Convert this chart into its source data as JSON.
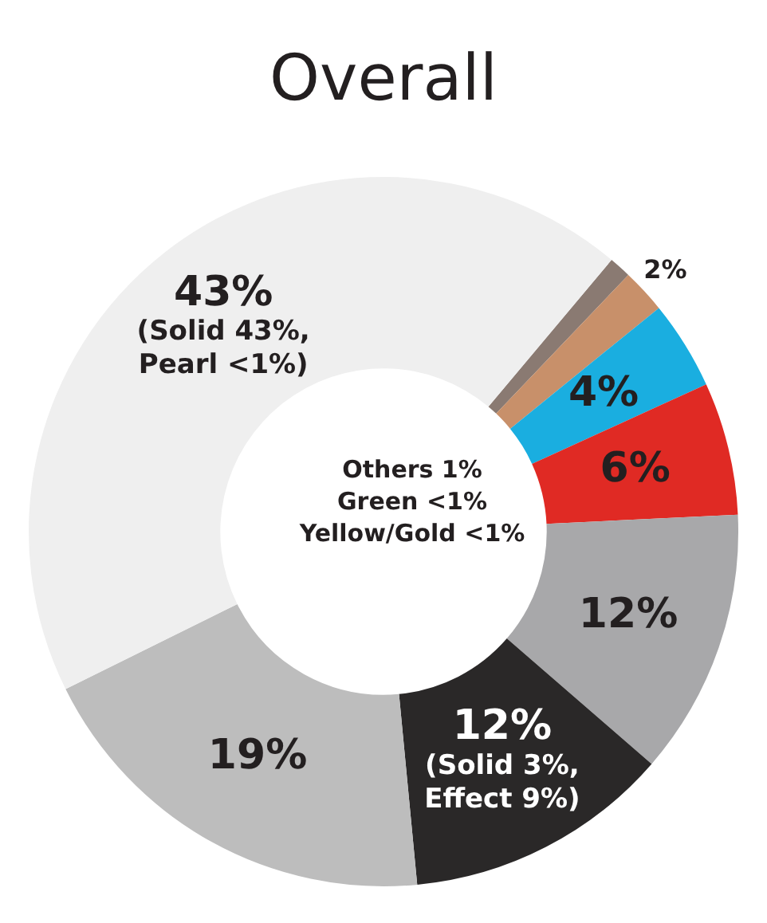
{
  "chart_data": {
    "type": "donut",
    "title": "Overall",
    "categories": [
      null,
      null,
      null,
      null,
      null,
      null,
      null,
      null
    ],
    "values": [
      1,
      2,
      4,
      6,
      12,
      12,
      19,
      43
    ],
    "colors": [
      "#8a7a72",
      "#c8906a",
      "#1aaee0",
      "#e02a24",
      "#a8a8aa",
      "#2a2828",
      "#bdbdbd",
      "#efefef"
    ],
    "value_labels": [
      null,
      "2%",
      "4%",
      "6%",
      "12%",
      "12%\n(Solid 3%,\nEffect 9%)",
      "19%",
      "43%\n(Solid 43%,\nPearl <1%)"
    ],
    "annotations": [
      "Others 1%",
      "Green <1%",
      "Yellow/Gold <1%"
    ],
    "legend": false
  }
}
